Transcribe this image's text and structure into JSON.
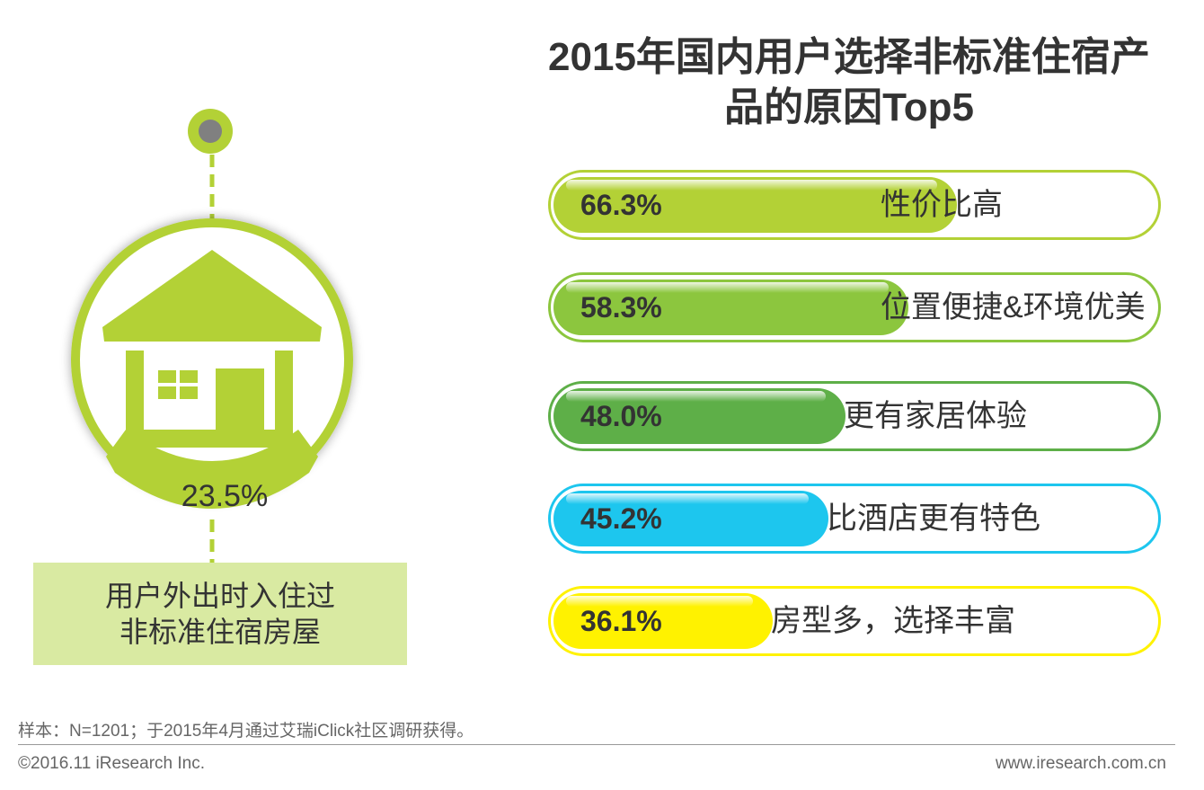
{
  "chart_data": {
    "type": "bar",
    "title": "2015年国内用户选择非标准住宿产品的原因Top5",
    "title_lines": [
      "2015年国内用户选择非标准住宿产",
      "品的原因Top5"
    ],
    "categories": [
      "性价比高",
      "位置便捷&环境优美",
      "更有家居体验",
      "比酒店更有特色",
      "房型多，选择丰富"
    ],
    "values": [
      66.3,
      58.3,
      48.0,
      45.2,
      36.1
    ],
    "value_labels": [
      "66.3%",
      "58.3%",
      "48.0%",
      "45.2%",
      "36.1%"
    ],
    "colors": [
      "#b3d136",
      "#8cc63e",
      "#5eaf48",
      "#1dc6ee",
      "#fff200"
    ],
    "track_colors": [
      "#b3d136",
      "#8cc63e",
      "#5eaf48",
      "#1dc6ee",
      "#fff200"
    ],
    "xlim": [
      0,
      100
    ],
    "xlabel": "",
    "ylabel": ""
  },
  "highlight": {
    "value": "23.5%",
    "caption_lines": [
      "用户外出时入住过",
      "非标准住宿房屋"
    ],
    "accent": "#b3d136",
    "icon": "house-icon"
  },
  "footer": {
    "note": "样本：N=1201；于2015年4月通过艾瑞iClick社区调研获得。",
    "copyright": "©2016.11 iResearch Inc.",
    "site": "www.iresearch.com.cn"
  }
}
